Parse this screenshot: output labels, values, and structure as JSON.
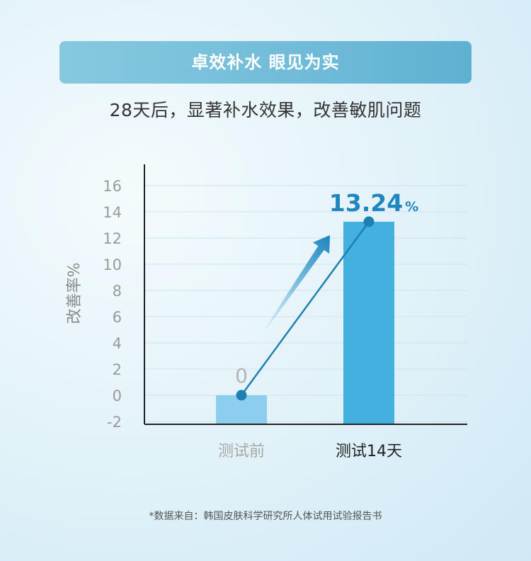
{
  "header": {
    "banner_text": "卓效补水 眼见为实",
    "subtitle": "28天后，显著补水效果，改善敏肌问题"
  },
  "colors": {
    "banner": "#76c0dc",
    "bar_before": "#8dcdee",
    "bar_after": "#43b0e0",
    "arrow_line": "#1e80b0",
    "highlight_value": "#1f86c0"
  },
  "chart_data": {
    "type": "bar",
    "categories": [
      "测试前",
      "测试14天"
    ],
    "values": [
      0,
      13.24
    ],
    "data_labels": [
      "0",
      "13.24"
    ],
    "data_label_unit": "%",
    "ylabel": "改善率%",
    "ylim": [
      -2,
      16
    ],
    "yticks": [
      -2,
      0,
      2,
      4,
      6,
      8,
      10,
      12,
      14,
      16
    ],
    "grid": true
  },
  "footnote": "*数据来自：韩国皮肤科学研究所人体试用试验报告书"
}
